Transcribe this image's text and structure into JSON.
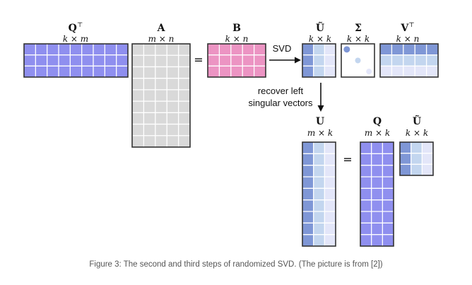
{
  "figure": {
    "caption": "Figure 3: The second and third steps of randomized SVD. (The picture is from [2])",
    "colors": {
      "purple": "#8f8fef",
      "gray": "#d9d9d9",
      "pink": "#ec94c3",
      "blue_dark": "#7f97d6",
      "blue_mid": "#c3d6ef",
      "blue_light": "#e3e6f9",
      "outline": "#333333",
      "grid": "#ffffff"
    },
    "matrices": [
      {
        "id": "qt-top",
        "name": "Q",
        "sup": "⊤",
        "dims": "k × m",
        "fill": "purple",
        "rows": 3,
        "cols": 9
      },
      {
        "id": "a",
        "name": "A",
        "sup": "",
        "dims": "m × n",
        "fill": "gray",
        "rows": 9,
        "cols": 5
      },
      {
        "id": "b",
        "name": "B",
        "sup": "",
        "dims": "k × n",
        "fill": "pink",
        "rows": 3,
        "cols": 5
      },
      {
        "id": "ut-top",
        "name": "Ũ",
        "sup": "",
        "dims": "k × k",
        "fill": "gradient",
        "rows": 3,
        "cols": 3
      },
      {
        "id": "sigma",
        "name": "Σ",
        "sup": "",
        "dims": "k × k",
        "fill": "diagonal",
        "rows": 3,
        "cols": 3
      },
      {
        "id": "vt",
        "name": "V",
        "sup": "⊤",
        "dims": "k × n",
        "fill": "vt",
        "rows": 3,
        "cols": 5
      },
      {
        "id": "u",
        "name": "U",
        "sup": "",
        "dims": "m × k",
        "fill": "gradient",
        "rows": 9,
        "cols": 3
      },
      {
        "id": "q",
        "name": "Q",
        "sup": "",
        "dims": "m × k",
        "fill": "purple",
        "rows": 9,
        "cols": 3
      },
      {
        "id": "ut-bottom",
        "name": "Ũ",
        "sup": "",
        "dims": "k × k",
        "fill": "gradient",
        "rows": 3,
        "cols": 3
      }
    ],
    "operators": {
      "equals": "="
    },
    "annotations": {
      "svd_label": "SVD",
      "recover_line1": "recover left",
      "recover_line2": "singular vectors"
    }
  }
}
